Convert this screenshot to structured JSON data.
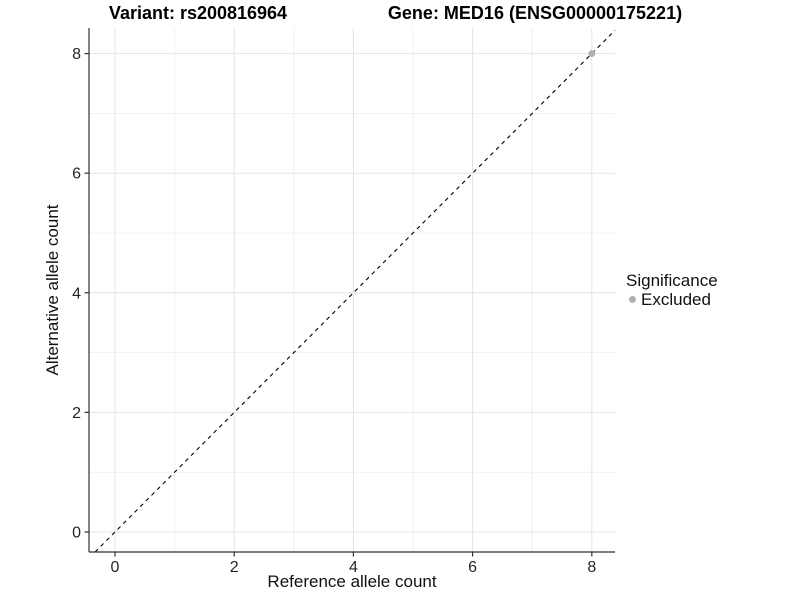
{
  "chart_data": {
    "type": "scatter",
    "title_left": "Variant: rs200816964",
    "title_right": "Gene: MED16 (ENSG00000175221)",
    "xlabel": "Reference allele count",
    "ylabel": "Alternative allele count",
    "x_ticks": [
      0,
      2,
      4,
      6,
      8
    ],
    "y_ticks": [
      0,
      2,
      4,
      6,
      8
    ],
    "x_minor_gridlines": [
      1,
      3,
      5,
      7
    ],
    "y_minor_gridlines": [
      1,
      3,
      5,
      7
    ],
    "xlim": [
      -0.44,
      8.43
    ],
    "ylim": [
      -0.33,
      8.43
    ],
    "identity_line": {
      "equation": "y = x",
      "style": "dashed",
      "color": "#000000"
    },
    "points": [
      {
        "x": 8,
        "y": 8,
        "significance": "Excluded",
        "color": "#b0b0b0"
      }
    ],
    "legend": {
      "title": "Significance",
      "position": "right",
      "entries": [
        {
          "label": "Excluded",
          "color": "#b0b0b0"
        }
      ]
    },
    "grid": true,
    "colors": {
      "background": "#ffffff",
      "major_grid": "#e4e4e4",
      "minor_grid": "#f1f1f1",
      "axis_line": "#333333",
      "tick_mark": "#333333",
      "tick_text": "#262626",
      "title_text": "#000000"
    }
  }
}
